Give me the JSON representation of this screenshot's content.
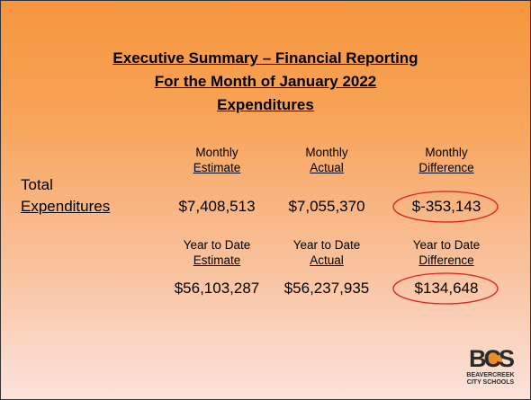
{
  "title": {
    "lines": [
      "Executive Summary – Financial Reporting",
      "For the Month of January 2022",
      "Expenditures"
    ]
  },
  "monthly": {
    "headers": [
      {
        "top": "Monthly",
        "bottom": "Estimate"
      },
      {
        "top": "Monthly",
        "bottom": "Actual"
      },
      {
        "top": "Monthly",
        "bottom": "Difference"
      }
    ],
    "label": [
      "Total",
      "Expenditures"
    ],
    "values": [
      "$7,408,513",
      "$7,055,370",
      "$-353,143"
    ]
  },
  "ytd": {
    "headers": [
      {
        "top": "Year to Date",
        "bottom": "Estimate"
      },
      {
        "top": "Year to Date",
        "bottom": "Actual"
      },
      {
        "top": "Year to Date",
        "bottom": "Difference"
      }
    ],
    "values": [
      "$56,103,287",
      "$56,237,935",
      "$134,648"
    ]
  },
  "logo": {
    "mark": "BCS",
    "name": [
      "BEAVERCREEK",
      "CITY SCHOOLS"
    ]
  }
}
